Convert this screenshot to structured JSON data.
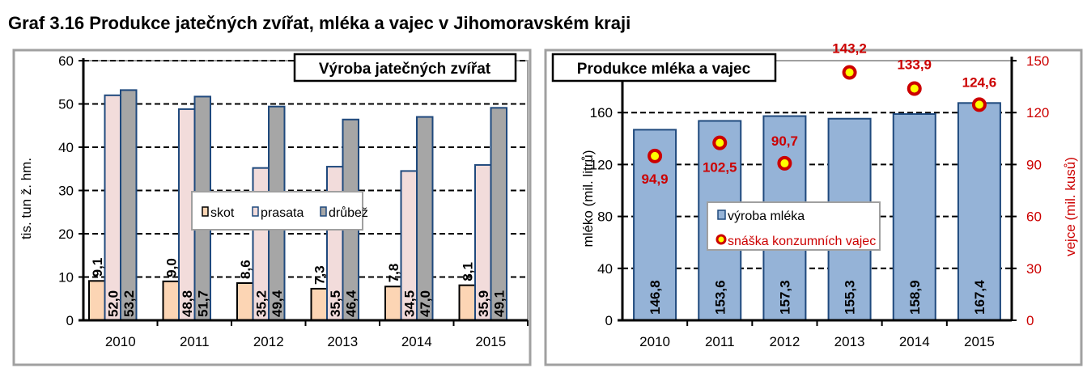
{
  "title": "Graf 3.16 Produkce jatečných zvířat, mléka a vajec v Jihomoravském kraji",
  "chart_data": [
    {
      "type": "bar",
      "title": "Výroba jatečných zvířat",
      "categories": [
        "2010",
        "2011",
        "2012",
        "2013",
        "2014",
        "2015"
      ],
      "ylabel": "tis. tun ž. hm.",
      "ylim": [
        0,
        60
      ],
      "yticks": [
        "0",
        "10",
        "20",
        "30",
        "40",
        "50",
        "60"
      ],
      "grid": true,
      "legend_position": "center",
      "series": [
        {
          "name": "skot",
          "color": "#FCD5B4",
          "values": [
            9.1,
            9.0,
            8.6,
            7.3,
            7.8,
            8.1
          ],
          "labels": [
            "9,1",
            "9,0",
            "8,6",
            "7,3",
            "7,8",
            "8,1"
          ]
        },
        {
          "name": "prasata",
          "color": "#F2DCDB",
          "values": [
            52.0,
            48.8,
            35.2,
            35.5,
            34.5,
            35.9
          ],
          "labels": [
            "52,0",
            "48,8",
            "35,2",
            "35,5",
            "34,5",
            "35,9"
          ]
        },
        {
          "name": "drůbež",
          "color": "#A6A6A6",
          "values": [
            53.2,
            51.7,
            49.4,
            46.4,
            47.0,
            49.1
          ],
          "labels": [
            "53,2",
            "51,7",
            "49,4",
            "46,4",
            "47,0",
            "49,1"
          ]
        }
      ]
    },
    {
      "type": "bar+scatter",
      "title": "Produkce mléka a vajec",
      "categories": [
        "2010",
        "2011",
        "2012",
        "2013",
        "2014",
        "2015"
      ],
      "ylabel": "mléko (mil. litrů)",
      "ylabel_right": "vejce (mil. kusů)",
      "ylim": [
        0,
        200
      ],
      "ylim_right": [
        0,
        150
      ],
      "yticks": [
        "0",
        "40",
        "80",
        "120",
        "160"
      ],
      "yticks_right": [
        "0",
        "30",
        "60",
        "90",
        "120",
        "150"
      ],
      "grid": true,
      "legend_position": "center-right",
      "series": [
        {
          "name": "výroba mléka",
          "color": "#95B3D7",
          "axis": "left",
          "values": [
            146.8,
            153.6,
            157.3,
            155.3,
            158.9,
            167.4
          ],
          "labels": [
            "146,8",
            "153,6",
            "157,3",
            "155,3",
            "158,9",
            "167,4"
          ]
        },
        {
          "name": "snáška konzumních vajec",
          "color": "#CC0000",
          "axis": "right",
          "values": [
            94.9,
            102.5,
            90.7,
            143.2,
            133.9,
            124.6
          ],
          "labels": [
            "94,9",
            "102,5",
            "90,7",
            "143,2",
            "133,9",
            "124,6"
          ]
        }
      ]
    }
  ]
}
